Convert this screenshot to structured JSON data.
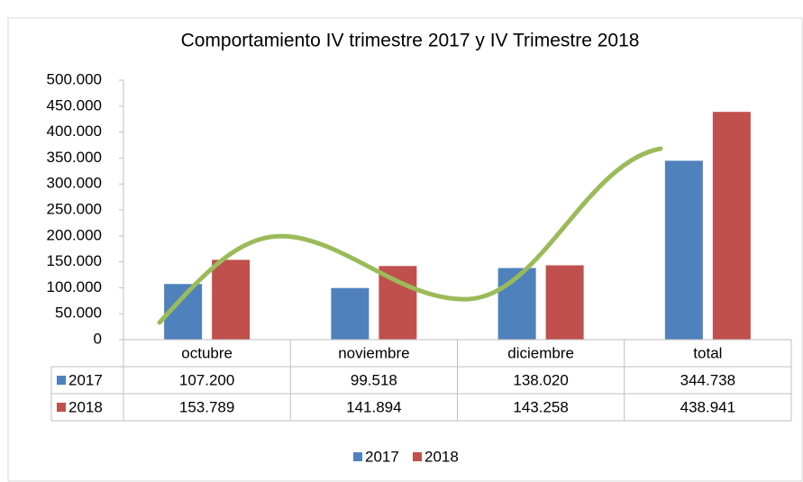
{
  "chart_data": {
    "type": "bar",
    "title": "Comportamiento IV trimestre 2017 y IV Trimestre 2018",
    "categories": [
      "octubre",
      "noviembre",
      "diciembre",
      "total"
    ],
    "series": [
      {
        "name": "2017",
        "color": "#4f81bd",
        "values": [
          107200,
          99518,
          138020,
          344738
        ],
        "value_labels": [
          "107.200",
          "99.518",
          "138.020",
          "344.738"
        ]
      },
      {
        "name": "2018",
        "color": "#c0504d",
        "values": [
          153789,
          141894,
          143258,
          438941
        ],
        "value_labels": [
          "153.789",
          "141.894",
          "143.258",
          "438.941"
        ]
      }
    ],
    "ylim": [
      0,
      500000
    ],
    "yticks": [
      0,
      {
        "value": 50000,
        "label": "50.000"
      },
      {
        "value": 100000,
        "label": "100.000"
      },
      {
        "value": 150000,
        "label": "150.000"
      },
      {
        "value": 200000,
        "label": "200.000"
      },
      {
        "value": 250000,
        "label": "250.000"
      },
      {
        "value": 300000,
        "label": "300.000"
      },
      {
        "value": 350000,
        "label": "350.000"
      },
      {
        "value": 400000,
        "label": "400.000"
      },
      {
        "value": 450000,
        "label": "450.000"
      },
      {
        "value": 500000,
        "label": "500.000"
      }
    ],
    "grid": false,
    "legend": "bottom"
  }
}
